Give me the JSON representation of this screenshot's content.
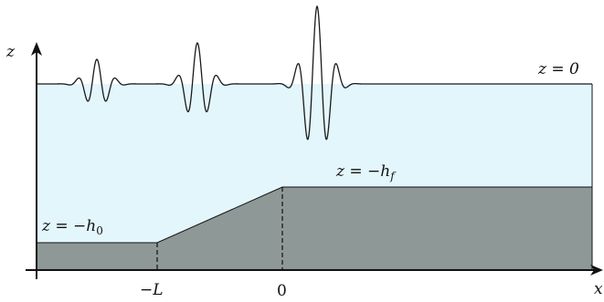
{
  "colors": {
    "water": "#e3f6fc",
    "seabed": "#8e9896",
    "line": "#111111",
    "wave": "#1a1a1a"
  },
  "axes": {
    "z_label": "z",
    "x_label": "x"
  },
  "labels": {
    "surface": "z = 0",
    "shelf_prefix": "z = −h",
    "shelf_sub": "f",
    "deep_prefix": "z = −h",
    "deep_sub": "0",
    "tick_minus_L": "−L",
    "tick_zero": "0"
  },
  "wave_packets": [
    {
      "name": "wave-packet-1",
      "center_x": 106,
      "amplitude": 27,
      "width": 12,
      "wavelength": 21
    },
    {
      "name": "wave-packet-2",
      "center_x": 216,
      "amplitude": 45,
      "width": 12,
      "wavelength": 22
    },
    {
      "name": "wave-packet-3",
      "center_x": 347,
      "amplitude": 85,
      "width": 13,
      "wavelength": 22
    }
  ]
}
